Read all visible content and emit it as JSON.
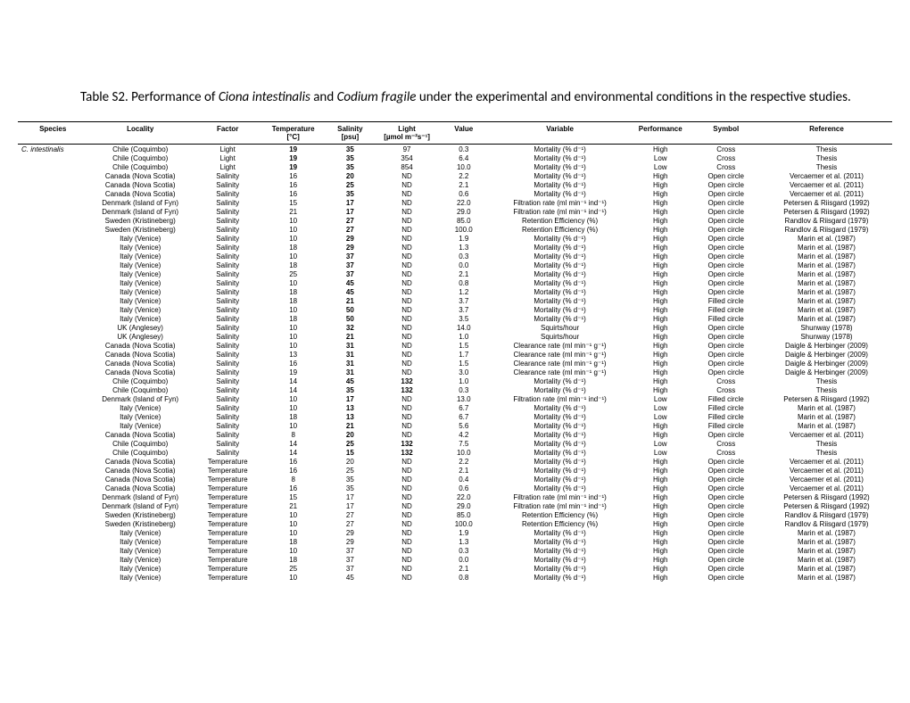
{
  "title_parts": {
    "p1": "Table S2. Performance of ",
    "i1": "Ciona intestinalis",
    "p2": " and ",
    "i2": "Codium fragile",
    "p3": " under the experimental and environmental conditions in the respective studies."
  },
  "headers": [
    "Species",
    "Locality",
    "Factor",
    "Temperature",
    "Salinity",
    "Light",
    "Value",
    "Variable",
    "Performance",
    "Symbol",
    "Reference"
  ],
  "units": [
    "",
    "",
    "",
    "[°C]",
    "[psu]",
    "[µmol m⁻²s⁻¹]",
    "",
    "",
    "",
    "",
    ""
  ],
  "species_first": "C. intestinalis",
  "rows": [
    [
      "Chile (Coquimbo)",
      "Light",
      "19",
      "35",
      "97",
      "0.3",
      "Mortality (% d⁻¹)",
      "High",
      "Cross",
      "Thesis",
      true,
      true,
      false
    ],
    [
      "Chile (Coquimbo)",
      "Light",
      "19",
      "35",
      "354",
      "6.4",
      "Mortality (% d⁻¹)",
      "Low",
      "Cross",
      "Thesis",
      true,
      true,
      false
    ],
    [
      "Chile (Coquimbo)",
      "Light",
      "19",
      "35",
      "854",
      "10.0",
      "Mortality (% d⁻¹)",
      "Low",
      "Cross",
      "Thesis",
      true,
      true,
      false
    ],
    [
      "Canada (Nova Scotia)",
      "Salinity",
      "16",
      "20",
      "ND",
      "2.2",
      "Mortality (% d⁻¹)",
      "High",
      "Open circle",
      "Vercaemer et al. (2011)",
      false,
      true,
      false
    ],
    [
      "Canada (Nova Scotia)",
      "Salinity",
      "16",
      "25",
      "ND",
      "2.1",
      "Mortality (% d⁻¹)",
      "High",
      "Open circle",
      "Vercaemer et al. (2011)",
      false,
      true,
      false
    ],
    [
      "Canada (Nova Scotia)",
      "Salinity",
      "16",
      "35",
      "ND",
      "0.6",
      "Mortality (% d⁻¹)",
      "High",
      "Open circle",
      "Vercaemer et al. (2011)",
      false,
      true,
      false
    ],
    [
      "Denmark (Island of Fyn)",
      "Salinity",
      "15",
      "17",
      "ND",
      "22.0",
      "Filtration rate (ml min⁻¹ ind⁻¹)",
      "High",
      "Open circle",
      "Petersen & Riisgard (1992)",
      false,
      true,
      false
    ],
    [
      "Denmark (Island of Fyn)",
      "Salinity",
      "21",
      "17",
      "ND",
      "29.0",
      "Filtration rate (ml min⁻¹ ind⁻¹)",
      "High",
      "Open circle",
      "Petersen & Riisgard (1992)",
      false,
      true,
      false
    ],
    [
      "Sweden (Kristineberg)",
      "Salinity",
      "10",
      "27",
      "ND",
      "85.0",
      "Retention Efficiency (%)",
      "High",
      "Open circle",
      "Randlov & Riisgard (1979)",
      false,
      true,
      false
    ],
    [
      "Sweden (Kristineberg)",
      "Salinity",
      "10",
      "27",
      "ND",
      "100.0",
      "Retention Efficiency (%)",
      "High",
      "Open circle",
      "Randlov & Riisgard (1979)",
      false,
      true,
      false
    ],
    [
      "Italy (Venice)",
      "Salinity",
      "10",
      "29",
      "ND",
      "1.9",
      "Mortality (% d⁻¹)",
      "High",
      "Open circle",
      "Marin et al. (1987)",
      false,
      true,
      false
    ],
    [
      "Italy (Venice)",
      "Salinity",
      "18",
      "29",
      "ND",
      "1.3",
      "Mortality (% d⁻¹)",
      "High",
      "Open circle",
      "Marin et al. (1987)",
      false,
      true,
      false
    ],
    [
      "Italy (Venice)",
      "Salinity",
      "10",
      "37",
      "ND",
      "0.3",
      "Mortality (% d⁻¹)",
      "High",
      "Open circle",
      "Marin et al. (1987)",
      false,
      true,
      false
    ],
    [
      "Italy (Venice)",
      "Salinity",
      "18",
      "37",
      "ND",
      "0.0",
      "Mortality (% d⁻¹)",
      "High",
      "Open circle",
      "Marin et al. (1987)",
      false,
      true,
      false
    ],
    [
      "Italy (Venice)",
      "Salinity",
      "25",
      "37",
      "ND",
      "2.1",
      "Mortality (% d⁻¹)",
      "High",
      "Open circle",
      "Marin et al. (1987)",
      false,
      true,
      false
    ],
    [
      "Italy (Venice)",
      "Salinity",
      "10",
      "45",
      "ND",
      "0.8",
      "Mortality (% d⁻¹)",
      "High",
      "Open circle",
      "Marin et al. (1987)",
      false,
      true,
      false
    ],
    [
      "Italy (Venice)",
      "Salinity",
      "18",
      "45",
      "ND",
      "1.2",
      "Mortality (% d⁻¹)",
      "High",
      "Open circle",
      "Marin et al. (1987)",
      false,
      true,
      false
    ],
    [
      "Italy (Venice)",
      "Salinity",
      "18",
      "21",
      "ND",
      "3.7",
      "Mortality (% d⁻¹)",
      "High",
      "Filled circle",
      "Marin et al. (1987)",
      false,
      true,
      false
    ],
    [
      "Italy (Venice)",
      "Salinity",
      "10",
      "50",
      "ND",
      "3.7",
      "Mortality (% d⁻¹)",
      "High",
      "Filled circle",
      "Marin et al. (1987)",
      false,
      true,
      false
    ],
    [
      "Italy (Venice)",
      "Salinity",
      "18",
      "50",
      "ND",
      "3.5",
      "Mortality (% d⁻¹)",
      "High",
      "Filled circle",
      "Marin et al. (1987)",
      false,
      true,
      false
    ],
    [
      "UK (Anglesey)",
      "Salinity",
      "10",
      "32",
      "ND",
      "14.0",
      "Squirts/hour",
      "High",
      "Open circle",
      "Shunway (1978)",
      false,
      true,
      false
    ],
    [
      "UK (Anglesey)",
      "Salinity",
      "10",
      "21",
      "ND",
      "1.0",
      "Squirts/hour",
      "High",
      "Open circle",
      "Shunway (1978)",
      false,
      true,
      false
    ],
    [
      "Canada (Nova Scotia)",
      "Salinity",
      "10",
      "31",
      "ND",
      "1.5",
      "Clearance rate (ml min⁻¹ g⁻¹)",
      "High",
      "Open circle",
      "Daigle & Herbinger (2009)",
      false,
      true,
      false
    ],
    [
      "Canada (Nova Scotia)",
      "Salinity",
      "13",
      "31",
      "ND",
      "1.7",
      "Clearance rate (ml min⁻¹ g⁻¹)",
      "High",
      "Open circle",
      "Daigle & Herbinger (2009)",
      false,
      true,
      false
    ],
    [
      "Canada (Nova Scotia)",
      "Salinity",
      "16",
      "31",
      "ND",
      "1.5",
      "Clearance rate (ml min⁻¹ g⁻¹)",
      "High",
      "Open circle",
      "Daigle & Herbinger (2009)",
      false,
      true,
      false
    ],
    [
      "Canada (Nova Scotia)",
      "Salinity",
      "19",
      "31",
      "ND",
      "3.0",
      "Clearance rate (ml min⁻¹ g⁻¹)",
      "High",
      "Open circle",
      "Daigle & Herbinger (2009)",
      false,
      true,
      false
    ],
    [
      "Chile (Coquimbo)",
      "Salinity",
      "14",
      "45",
      "132",
      "1.0",
      "Mortality (% d⁻¹)",
      "High",
      "Cross",
      "Thesis",
      false,
      true,
      true
    ],
    [
      "Chile (Coquimbo)",
      "Salinity",
      "14",
      "35",
      "132",
      "0.3",
      "Mortality (% d⁻¹)",
      "High",
      "Cross",
      "Thesis",
      false,
      true,
      true
    ],
    [
      "Denmark (Island of Fyn)",
      "Salinity",
      "10",
      "17",
      "ND",
      "13.0",
      "Filtration rate (ml min⁻¹ ind⁻¹)",
      "Low",
      "Filled circle",
      "Petersen & Riisgard (1992)",
      false,
      true,
      false
    ],
    [
      "Italy (Venice)",
      "Salinity",
      "10",
      "13",
      "ND",
      "6.7",
      "Mortality (% d⁻¹)",
      "Low",
      "Filled circle",
      "Marin et al. (1987)",
      false,
      true,
      false
    ],
    [
      "Italy (Venice)",
      "Salinity",
      "18",
      "13",
      "ND",
      "6.7",
      "Mortality (% d⁻¹)",
      "Low",
      "Filled circle",
      "Marin et al. (1987)",
      false,
      true,
      false
    ],
    [
      "Italy (Venice)",
      "Salinity",
      "10",
      "21",
      "ND",
      "5.6",
      "Mortality (% d⁻¹)",
      "High",
      "Filled circle",
      "Marin et al. (1987)",
      false,
      true,
      false
    ],
    [
      "Canada (Nova Scotia)",
      "Salinity",
      "8",
      "20",
      "ND",
      "4.2",
      "Mortality (% d⁻¹)",
      "High",
      "Open circle",
      "Vercaemer et al. (2011)",
      false,
      true,
      false
    ],
    [
      "Chile (Coquimbo)",
      "Salinity",
      "14",
      "25",
      "132",
      "7.5",
      "Mortality (% d⁻¹)",
      "Low",
      "Cross",
      "Thesis",
      false,
      true,
      true
    ],
    [
      "Chile (Coquimbo)",
      "Salinity",
      "14",
      "15",
      "132",
      "10.0",
      "Mortality (% d⁻¹)",
      "Low",
      "Cross",
      "Thesis",
      false,
      true,
      true
    ],
    [
      "Canada (Nova Scotia)",
      "Temperature",
      "16",
      "20",
      "ND",
      "2.2",
      "Mortality (% d⁻¹)",
      "High",
      "Open circle",
      "Vercaemer et al. (2011)",
      false,
      false,
      false
    ],
    [
      "Canada (Nova Scotia)",
      "Temperature",
      "16",
      "25",
      "ND",
      "2.1",
      "Mortality (% d⁻¹)",
      "High",
      "Open circle",
      "Vercaemer et al. (2011)",
      false,
      false,
      false
    ],
    [
      "Canada (Nova Scotia)",
      "Temperature",
      "8",
      "35",
      "ND",
      "0.4",
      "Mortality (% d⁻¹)",
      "High",
      "Open circle",
      "Vercaemer et al. (2011)",
      false,
      false,
      false
    ],
    [
      "Canada (Nova Scotia)",
      "Temperature",
      "16",
      "35",
      "ND",
      "0.6",
      "Mortality (% d⁻¹)",
      "High",
      "Open circle",
      "Vercaemer et al. (2011)",
      false,
      false,
      false
    ],
    [
      "Denmark (Island of Fyn)",
      "Temperature",
      "15",
      "17",
      "ND",
      "22.0",
      "Filtration rate (ml min⁻¹ ind⁻¹)",
      "High",
      "Open circle",
      "Petersen & Riisgard (1992)",
      false,
      false,
      false
    ],
    [
      "Denmark (Island of Fyn)",
      "Temperature",
      "21",
      "17",
      "ND",
      "29.0",
      "Filtration rate (ml min⁻¹ ind⁻¹)",
      "High",
      "Open circle",
      "Petersen & Riisgard (1992)",
      false,
      false,
      false
    ],
    [
      "Sweden (Kristineberg)",
      "Temperature",
      "10",
      "27",
      "ND",
      "85.0",
      "Retention Efficiency (%)",
      "High",
      "Open circle",
      "Randlov & Riisgard (1979)",
      false,
      false,
      false
    ],
    [
      "Sweden (Kristineberg)",
      "Temperature",
      "10",
      "27",
      "ND",
      "100.0",
      "Retention Efficiency (%)",
      "High",
      "Open circle",
      "Randlov & Riisgard (1979)",
      false,
      false,
      false
    ],
    [
      "Italy (Venice)",
      "Temperature",
      "10",
      "29",
      "ND",
      "1.9",
      "Mortality (% d⁻¹)",
      "High",
      "Open circle",
      "Marin et al. (1987)",
      false,
      false,
      false
    ],
    [
      "Italy (Venice)",
      "Temperature",
      "18",
      "29",
      "ND",
      "1.3",
      "Mortality (% d⁻¹)",
      "High",
      "Open circle",
      "Marin et al. (1987)",
      false,
      false,
      false
    ],
    [
      "Italy (Venice)",
      "Temperature",
      "10",
      "37",
      "ND",
      "0.3",
      "Mortality (% d⁻¹)",
      "High",
      "Open circle",
      "Marin et al. (1987)",
      false,
      false,
      false
    ],
    [
      "Italy (Venice)",
      "Temperature",
      "18",
      "37",
      "ND",
      "0.0",
      "Mortality (% d⁻¹)",
      "High",
      "Open circle",
      "Marin et al. (1987)",
      false,
      false,
      false
    ],
    [
      "Italy (Venice)",
      "Temperature",
      "25",
      "37",
      "ND",
      "2.1",
      "Mortality (% d⁻¹)",
      "High",
      "Open circle",
      "Marin et al. (1987)",
      false,
      false,
      false
    ],
    [
      "Italy (Venice)",
      "Temperature",
      "10",
      "45",
      "ND",
      "0.8",
      "Mortality (% d⁻¹)",
      "High",
      "Open circle",
      "Marin et al. (1987)",
      false,
      false,
      false
    ]
  ]
}
